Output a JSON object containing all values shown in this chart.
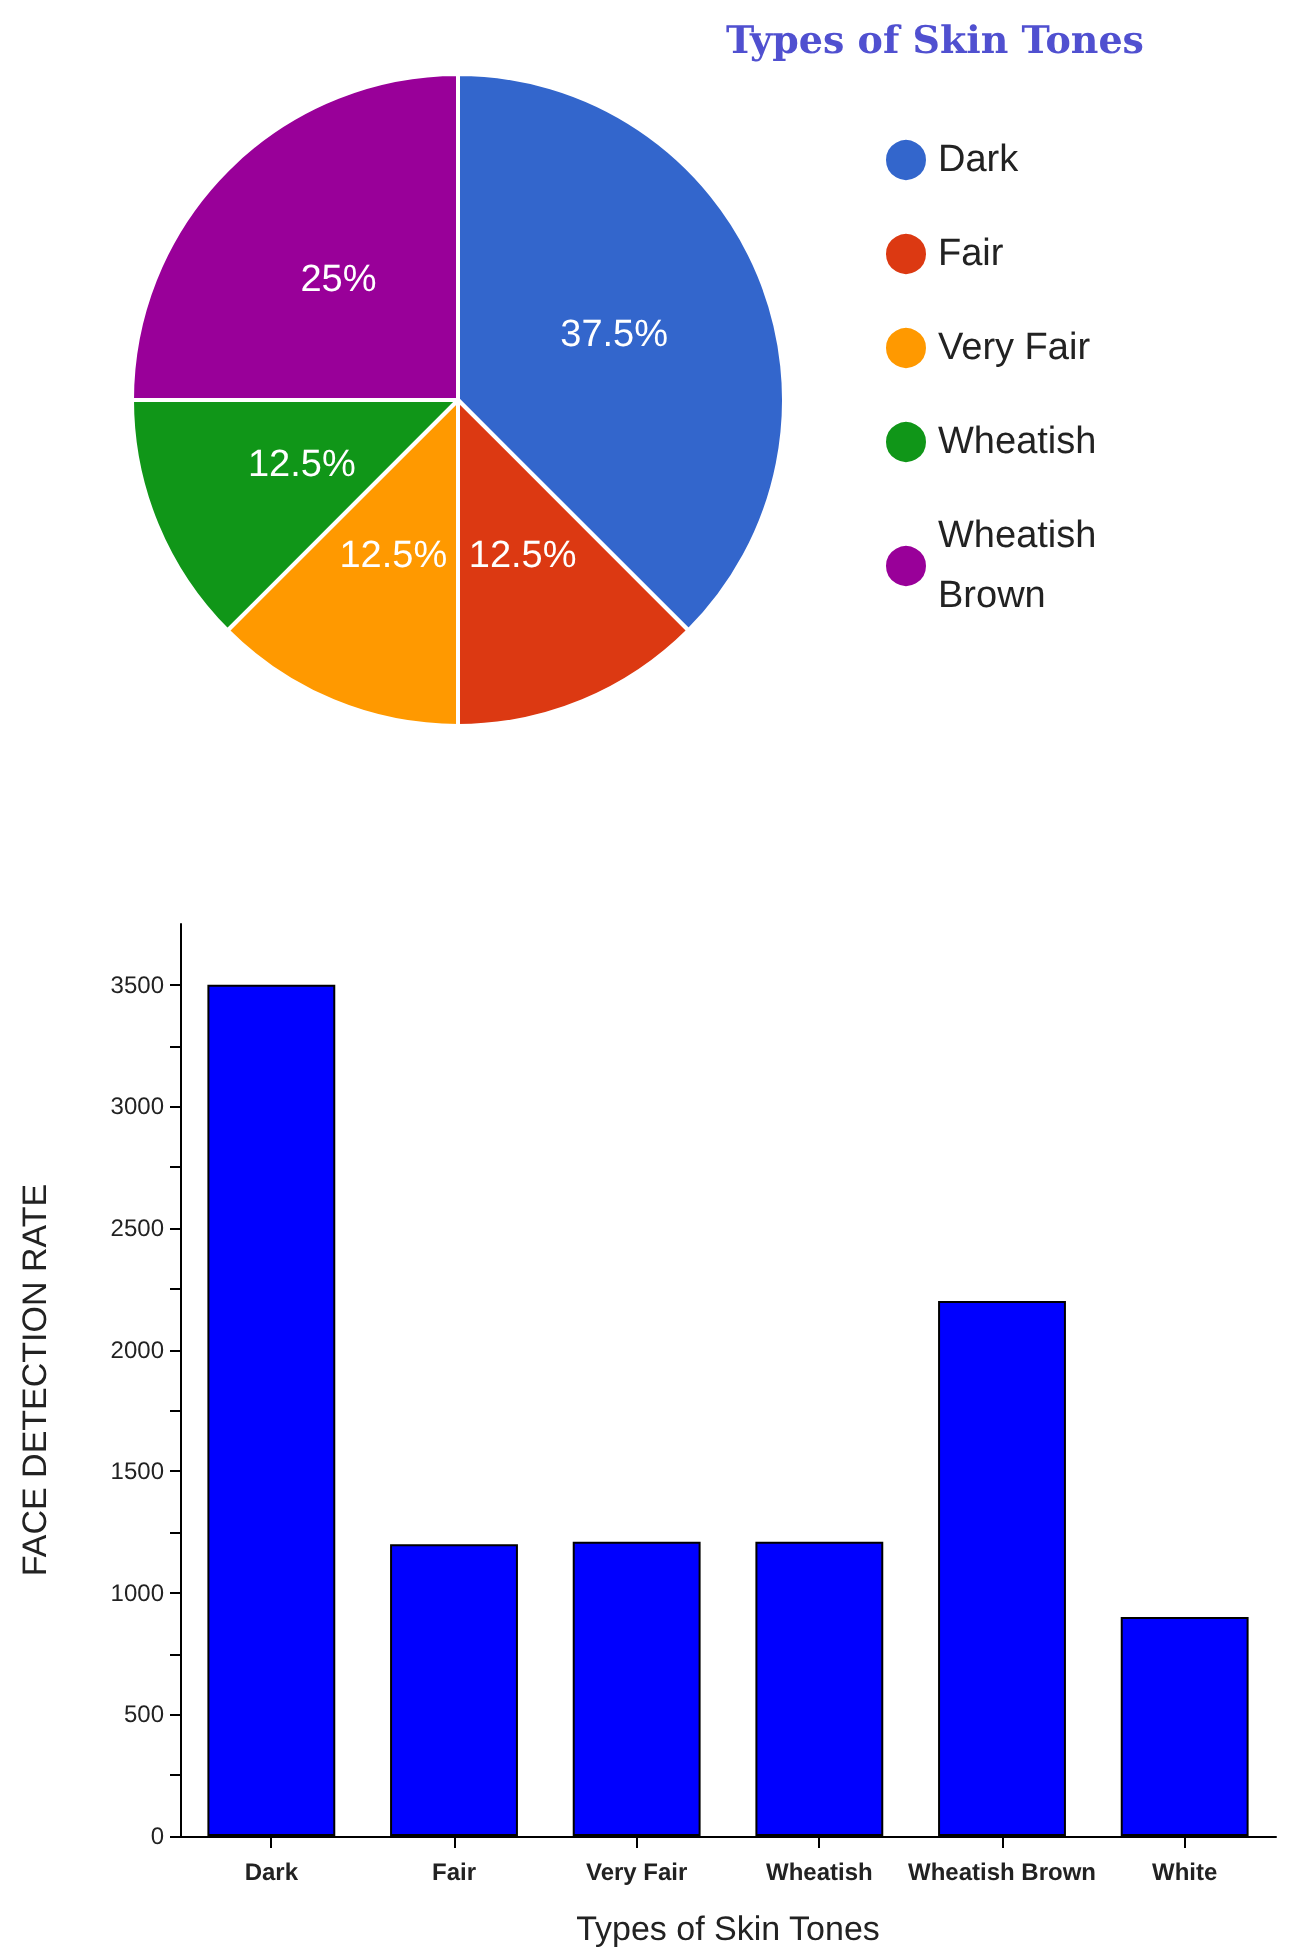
{
  "chart_data": [
    {
      "type": "pie",
      "title": "Types of Skin Tones",
      "categories": [
        "Dark",
        "Fair",
        "Very Fair",
        "Wheatish",
        "Wheatish Brown"
      ],
      "values": [
        37.5,
        12.5,
        12.5,
        12.5,
        25
      ],
      "colors": [
        "#3366cc",
        "#dc3912",
        "#ff9900",
        "#109618",
        "#990099"
      ],
      "value_labels": [
        "37.5%",
        "12.5%",
        "12.5%",
        "12.5%",
        "25%"
      ],
      "legend": "right"
    },
    {
      "type": "bar",
      "xlabel": "Types of Skin Tones",
      "ylabel": "FACE DETECTION RATE",
      "categories": [
        "Dark",
        "Fair",
        "Very Fair",
        "Wheatish",
        "Wheatish Brown",
        "White"
      ],
      "values": [
        3500,
        1200,
        1210,
        1210,
        2200,
        900
      ],
      "color": "#0000ff",
      "ylim": [
        0,
        3750
      ],
      "yticks": [
        0,
        {
          "value": 250,
          "label": null
        },
        500,
        {
          "value": 750,
          "label": null
        },
        1000,
        {
          "value": 1250,
          "label": null
        },
        1500,
        {
          "value": 1750,
          "label": null
        },
        2000,
        {
          "value": 2250,
          "label": null
        },
        2500,
        {
          "value": 2750,
          "label": null
        },
        3000,
        {
          "value": 3250,
          "label": null
        },
        3500
      ],
      "grid": false
    }
  ]
}
